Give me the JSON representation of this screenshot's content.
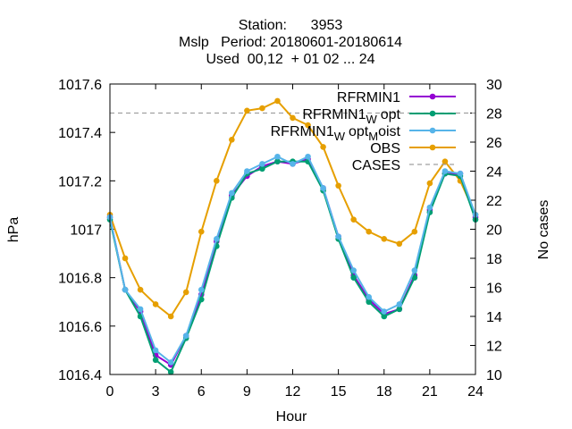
{
  "chart_data": {
    "type": "line",
    "title_lines": [
      "Station:      3953",
      "Mslp   Period: 20180601-20180614",
      "Used  00,12  + 01 02 ... 24"
    ],
    "xlabel": "Hour",
    "ylabel": "hPa",
    "y2label": "No cases",
    "xlim": [
      0,
      24
    ],
    "ylim": [
      1016.4,
      1017.6
    ],
    "y2lim": [
      10,
      30
    ],
    "x_ticks": [
      "0",
      "3",
      "6",
      "9",
      "12",
      "15",
      "18",
      "21",
      "24"
    ],
    "y_ticks": [
      "1016.4",
      "1016.6",
      "1016.8",
      "1017",
      "1017.2",
      "1017.4",
      "1017.6"
    ],
    "y2_ticks": [
      "10",
      "12",
      "14",
      "16",
      "18",
      "20",
      "22",
      "24",
      "26",
      "28",
      "30"
    ],
    "grid": false,
    "legend_position": "top-right",
    "x": [
      0,
      1,
      2,
      3,
      4,
      5,
      6,
      7,
      8,
      9,
      10,
      11,
      12,
      13,
      14,
      15,
      16,
      17,
      18,
      19,
      20,
      21,
      22,
      23,
      24
    ],
    "series": [
      {
        "name": "RFRMIN1",
        "color": "#9400d3",
        "marker": "circle",
        "values": [
          1017.05,
          1016.75,
          1016.66,
          1016.48,
          1016.44,
          1016.56,
          1016.73,
          1016.95,
          1017.14,
          1017.22,
          1017.26,
          1017.28,
          1017.27,
          1017.29,
          1017.17,
          1016.97,
          1016.81,
          1016.71,
          1016.65,
          1016.67,
          1016.81,
          1017.08,
          1017.23,
          1017.23,
          1017.05
        ]
      },
      {
        "name": "RFRMIN1_W opt",
        "label_main": "RFRMIN1",
        "label_sub": "W",
        "label_tail": "opt",
        "color": "#009e73",
        "marker": "circle",
        "values": [
          1017.04,
          1016.75,
          1016.64,
          1016.46,
          1016.41,
          1016.55,
          1016.71,
          1016.93,
          1017.13,
          1017.23,
          1017.25,
          1017.28,
          1017.28,
          1017.28,
          1017.16,
          1016.96,
          1016.8,
          1016.7,
          1016.64,
          1016.67,
          1016.8,
          1017.07,
          1017.23,
          1017.22,
          1017.04
        ]
      },
      {
        "name": "RFRMIN1_W opt_M oist",
        "label_main": "RFRMIN1",
        "label_sub": "W",
        "label_tail": "opt",
        "label_sub2": "M",
        "label_tail2": "oist",
        "color": "#56b4e9",
        "marker": "circle",
        "values": [
          1017.05,
          1016.75,
          1016.67,
          1016.5,
          1016.45,
          1016.56,
          1016.75,
          1016.96,
          1017.15,
          1017.24,
          1017.27,
          1017.3,
          1017.27,
          1017.3,
          1017.17,
          1016.97,
          1016.83,
          1016.72,
          1016.66,
          1016.69,
          1016.83,
          1017.09,
          1017.24,
          1017.23,
          1017.06
        ]
      },
      {
        "name": "OBS",
        "color": "#e69f00",
        "marker": "circle",
        "values": [
          1017.06,
          1016.88,
          1016.75,
          1016.69,
          1016.64,
          1016.74,
          1016.99,
          1017.2,
          1017.37,
          1017.49,
          1017.5,
          1017.53,
          1017.46,
          1017.43,
          1017.34,
          1017.18,
          1017.04,
          1016.99,
          1016.96,
          1016.94,
          1016.99,
          1017.19,
          1017.28,
          1017.2,
          1017.06
        ]
      }
    ],
    "cases": {
      "name": "CASES",
      "color": "#a0a0a0",
      "style": "dashed",
      "value": 28
    }
  }
}
